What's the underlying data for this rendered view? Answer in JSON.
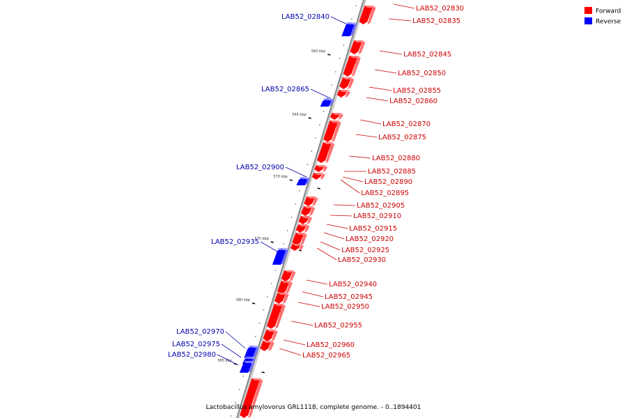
{
  "caption": "Lactobacillus amylovorus GRL1118, complete genome. - 0..1894401",
  "legend": [
    {
      "label": "Forward",
      "color": "#ff0000"
    },
    {
      "label": "Reverse",
      "color": "#0000ff"
    }
  ],
  "colors": {
    "forward_label": "#cc0000",
    "reverse_label": "#0000aa",
    "backbone": "#888888"
  },
  "ticks": [
    {
      "label": "560 kbp"
    },
    {
      "label": "565 kbp"
    },
    {
      "label": "570 kbp"
    },
    {
      "label": "575 kbp"
    },
    {
      "label": "580 kbp"
    },
    {
      "label": "585 kbp"
    }
  ],
  "genes": [
    {
      "id": "LAB52_02830",
      "strand": "forward"
    },
    {
      "id": "LAB52_02835",
      "strand": "forward"
    },
    {
      "id": "LAB52_02840",
      "strand": "reverse"
    },
    {
      "id": "LAB52_02845",
      "strand": "forward"
    },
    {
      "id": "LAB52_02850",
      "strand": "forward"
    },
    {
      "id": "LAB52_02855",
      "strand": "forward"
    },
    {
      "id": "LAB52_02860",
      "strand": "forward"
    },
    {
      "id": "LAB52_02865",
      "strand": "reverse"
    },
    {
      "id": "LAB52_02870",
      "strand": "forward"
    },
    {
      "id": "LAB52_02875",
      "strand": "forward"
    },
    {
      "id": "LAB52_02880",
      "strand": "forward"
    },
    {
      "id": "LAB52_02885",
      "strand": "forward"
    },
    {
      "id": "LAB52_02890",
      "strand": "forward"
    },
    {
      "id": "LAB52_02895",
      "strand": "forward"
    },
    {
      "id": "LAB52_02900",
      "strand": "reverse"
    },
    {
      "id": "LAB52_02905",
      "strand": "forward"
    },
    {
      "id": "LAB52_02910",
      "strand": "forward"
    },
    {
      "id": "LAB52_02915",
      "strand": "forward"
    },
    {
      "id": "LAB52_02920",
      "strand": "forward"
    },
    {
      "id": "LAB52_02925",
      "strand": "forward"
    },
    {
      "id": "LAB52_02930",
      "strand": "forward"
    },
    {
      "id": "LAB52_02935",
      "strand": "reverse"
    },
    {
      "id": "LAB52_02940",
      "strand": "forward"
    },
    {
      "id": "LAB52_02945",
      "strand": "forward"
    },
    {
      "id": "LAB52_02950",
      "strand": "forward"
    },
    {
      "id": "LAB52_02955",
      "strand": "forward"
    },
    {
      "id": "LAB52_02960",
      "strand": "forward"
    },
    {
      "id": "LAB52_02965",
      "strand": "forward"
    },
    {
      "id": "LAB52_02970",
      "strand": "reverse"
    },
    {
      "id": "LAB52_02975",
      "strand": "reverse"
    },
    {
      "id": "LAB52_02980",
      "strand": "reverse"
    }
  ]
}
